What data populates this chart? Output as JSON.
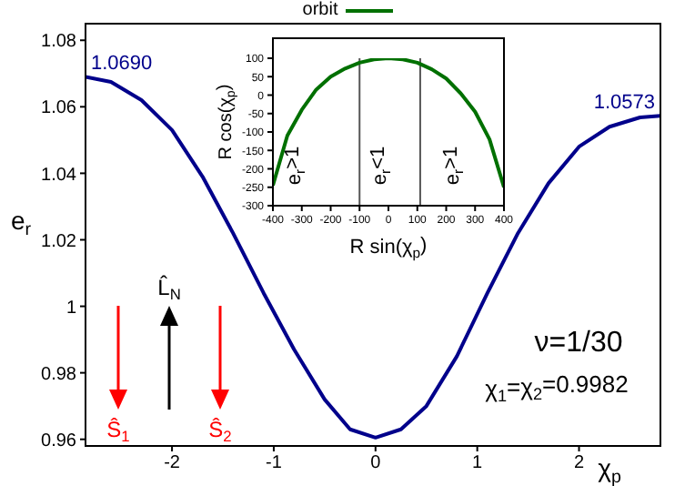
{
  "chart_data": [
    {
      "type": "line",
      "xlabel": "χ$_{p}$",
      "ylabel": "e$_{r}$",
      "xlim": [
        -2.85,
        2.8
      ],
      "ylim": [
        0.958,
        1.085
      ],
      "xticks": [
        -2,
        -1,
        0,
        1,
        2
      ],
      "yticks": [
        0.96,
        0.98,
        1,
        1.02,
        1.04,
        1.06,
        1.08
      ],
      "grid": false,
      "legend": false,
      "series": [
        {
          "color": "#00008b",
          "x": [
            -2.85,
            -2.6,
            -2.3,
            -2.0,
            -1.7,
            -1.4,
            -1.1,
            -0.8,
            -0.5,
            -0.25,
            0,
            0.25,
            0.5,
            0.8,
            1.1,
            1.4,
            1.7,
            2.0,
            2.3,
            2.6,
            2.8
          ],
          "values": [
            1.069,
            1.0675,
            1.062,
            1.053,
            1.039,
            1.022,
            1.004,
            0.987,
            0.972,
            0.963,
            0.9605,
            0.963,
            0.97,
            0.985,
            1.004,
            1.022,
            1.037,
            1.048,
            1.054,
            1.0568,
            1.0573
          ]
        }
      ],
      "annotations": [
        {
          "text": "1.0690",
          "x": -2.85,
          "y": 1.069
        },
        {
          "text": "1.0573",
          "x": 2.8,
          "y": 1.0573
        },
        "ν=1/30",
        "χ$_{1}$=χ$_{2}$=0.9982",
        "Ŝ$_{1}$",
        "L̂$_{N}$",
        "Ŝ$_{2}$"
      ]
    },
    {
      "type": "line",
      "xlabel": "R sin(χ$_{p}$)",
      "ylabel": "R cos(χ$_{p}$)",
      "xlim": [
        -400,
        400
      ],
      "ylim": [
        -300,
        100
      ],
      "xticks": [
        -400,
        -300,
        -200,
        -100,
        0,
        100,
        200,
        300,
        400
      ],
      "yticks": [
        -300,
        -250,
        -200,
        -150,
        -100,
        -50,
        0,
        50,
        100
      ],
      "grid": false,
      "legend": "top",
      "series": [
        {
          "name": "orbit",
          "color": "#007000",
          "x": [
            -400,
            -350,
            -300,
            -250,
            -200,
            -150,
            -100,
            -50,
            0,
            50,
            100,
            150,
            200,
            250,
            300,
            350,
            400
          ],
          "values": [
            -245,
            -110,
            -40,
            15,
            50,
            72,
            88,
            97,
            100,
            97,
            88,
            70,
            45,
            5,
            -45,
            -120,
            -250
          ]
        }
      ],
      "ref_lines": [
        {
          "axis": "x",
          "value": -100,
          "color": "#555555"
        },
        {
          "axis": "x",
          "value": 110,
          "color": "#555555"
        }
      ],
      "annotations": [
        "e$_{r}$>1",
        "e$_{r}$<1",
        "e$_{r}$>1"
      ]
    }
  ]
}
